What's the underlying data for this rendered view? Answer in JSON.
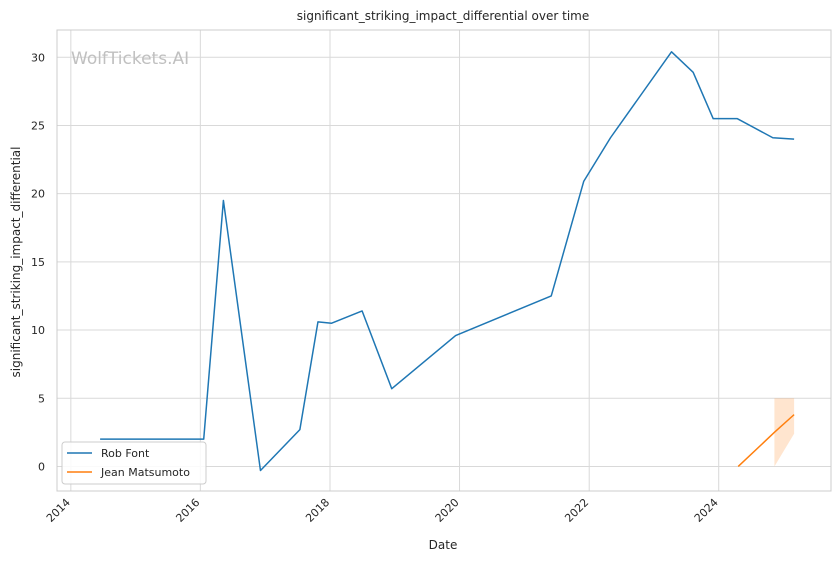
{
  "chart_data": {
    "type": "line",
    "title": "significant_striking_impact_differential over time",
    "xlabel": "Date",
    "ylabel": "significant_striking_impact_differential",
    "watermark": "WolfTickets.AI",
    "xlim": [
      "2013-10-15",
      "2025-09-25"
    ],
    "ylim": [
      -1.8,
      32
    ],
    "x_ticks": [
      "2014",
      "2016",
      "2018",
      "2020",
      "2022",
      "2024"
    ],
    "y_ticks": [
      "0",
      "5",
      "10",
      "15",
      "20",
      "25",
      "30"
    ],
    "grid": true,
    "legend_position": "lower-left",
    "series": [
      {
        "name": "Rob Font",
        "color": "#1f77b4",
        "points": [
          {
            "x": "2014-06-15",
            "y": 2.0
          },
          {
            "x": "2016-01-20",
            "y": 2.0
          },
          {
            "x": "2016-05-10",
            "y": 19.5
          },
          {
            "x": "2016-12-05",
            "y": -0.3
          },
          {
            "x": "2017-07-15",
            "y": 2.7
          },
          {
            "x": "2017-10-25",
            "y": 10.6
          },
          {
            "x": "2018-01-10",
            "y": 10.5
          },
          {
            "x": "2018-07-01",
            "y": 11.4
          },
          {
            "x": "2018-12-15",
            "y": 5.7
          },
          {
            "x": "2019-12-10",
            "y": 9.6
          },
          {
            "x": "2021-06-01",
            "y": 12.5
          },
          {
            "x": "2021-12-01",
            "y": 20.9
          },
          {
            "x": "2022-05-01",
            "y": 24.1
          },
          {
            "x": "2023-04-10",
            "y": 30.4
          },
          {
            "x": "2023-08-10",
            "y": 28.9
          },
          {
            "x": "2023-12-01",
            "y": 25.5
          },
          {
            "x": "2024-04-15",
            "y": 25.5
          },
          {
            "x": "2024-11-01",
            "y": 24.1
          },
          {
            "x": "2025-03-01",
            "y": 24.0
          }
        ]
      },
      {
        "name": "Jean Matsumoto",
        "color": "#ff7f0e",
        "points": [
          {
            "x": "2024-04-20",
            "y": 0.0
          },
          {
            "x": "2024-11-10",
            "y": 2.5
          },
          {
            "x": "2025-03-01",
            "y": 3.8
          }
        ],
        "band": [
          {
            "x": "2024-11-10",
            "low": 0.0,
            "high": 5.0
          },
          {
            "x": "2025-03-01",
            "low": 2.4,
            "high": 5.0
          }
        ]
      }
    ]
  }
}
